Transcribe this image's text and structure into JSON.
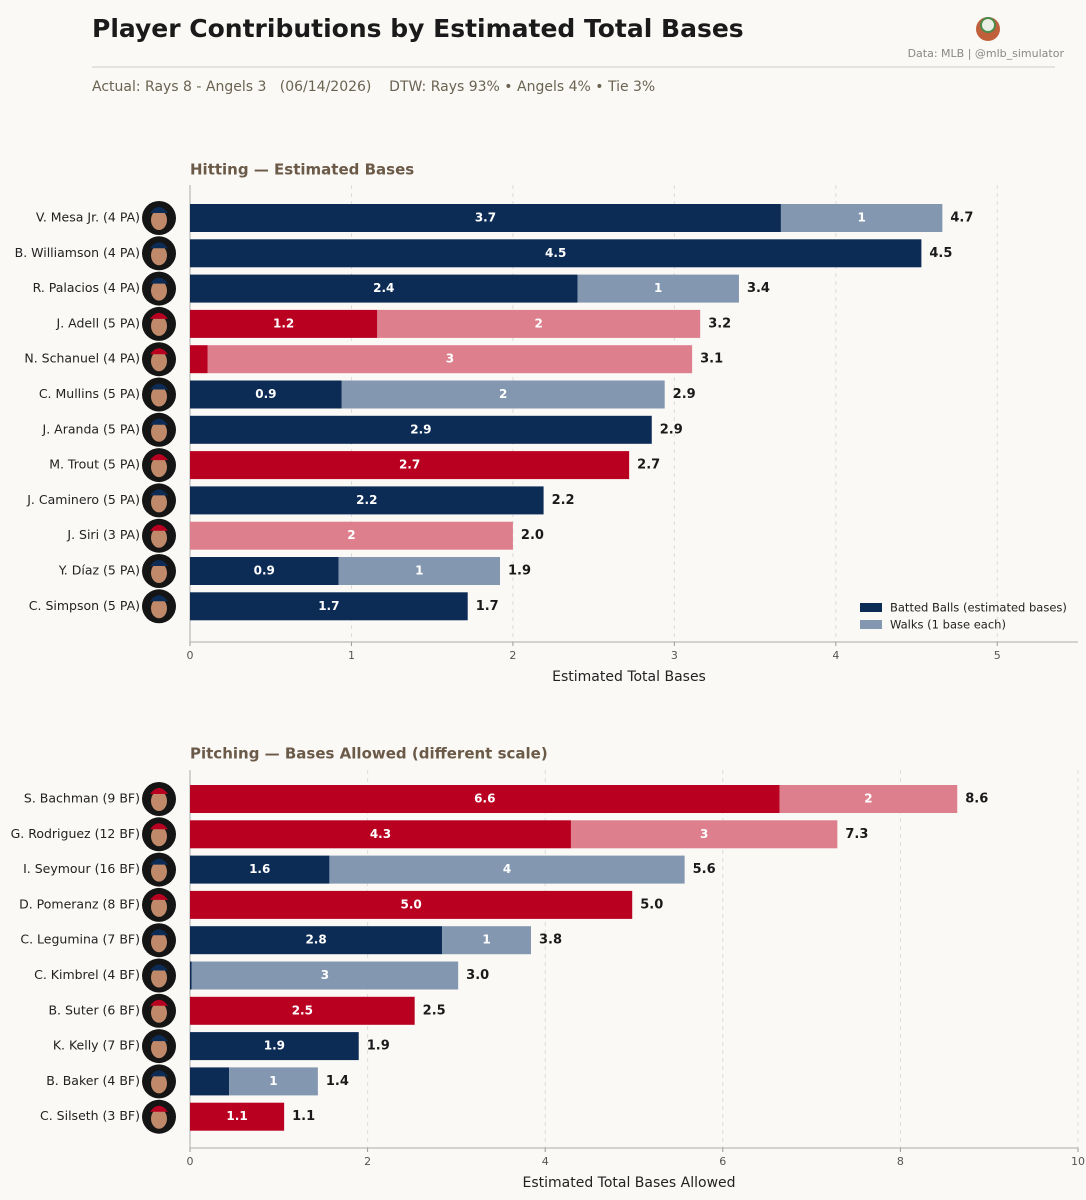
{
  "header": {
    "title": "Player Contributions by Estimated Total Bases",
    "source": "Data: MLB  |  @mlb_simulator",
    "subtitle": "Actual: Rays 8 - Angels 3   (06/14/2026)    DTW: Rays 93% • Angels 4% • Tie 3%"
  },
  "chart_data": [
    {
      "type": "stacked-barh",
      "title": "Hitting  —  Estimated Bases",
      "xlabel": "Estimated Total Bases",
      "categories": [
        "V. Mesa Jr.  (4 PA)",
        "B. Williamson  (4 PA)",
        "R. Palacios  (4 PA)",
        "J. Adell  (5 PA)",
        "N. Schanuel  (4 PA)",
        "C. Mullins  (5 PA)",
        "J. Aranda  (5 PA)",
        "M. Trout  (5 PA)",
        "J. Caminero  (5 PA)",
        "J. Siri  (3 PA)",
        "Y. Díaz  (5 PA)",
        "C. Simpson  (5 PA)"
      ],
      "series": [
        {
          "name": "Batted Balls (estimated bases)",
          "color": "#0c2c56",
          "colors": [
            "#0c2c56",
            "#0c2c56",
            "#0c2c56",
            "#ba0021",
            "#ba0021",
            "#0c2c56",
            "#0c2c56",
            "#ba0021",
            "#0c2c56",
            "#ba0021",
            "#0c2c56",
            "#0c2c56"
          ],
          "values": [
            3.66,
            4.53,
            2.4,
            1.16,
            0.11,
            0.94,
            2.86,
            2.72,
            2.19,
            0,
            0.92,
            1.72
          ],
          "value_labels": [
            "3.7",
            "4.5",
            "2.4",
            "1.2",
            null,
            "0.9",
            "2.9",
            "2.7",
            "2.2",
            null,
            "0.9",
            "1.7"
          ]
        },
        {
          "name": "Walks (1 base each)",
          "color": "#8497b0",
          "colors": [
            "#8497b0",
            "#8497b0",
            "#8497b0",
            "#dd7f8c",
            "#dd7f8c",
            "#8497b0",
            "#8497b0",
            "#dd7f8c",
            "#8497b0",
            "#dd7f8c",
            "#8497b0",
            "#8497b0"
          ],
          "values": [
            1,
            0,
            1,
            2,
            3,
            2,
            0,
            0,
            0,
            2,
            1,
            0
          ],
          "value_labels": [
            "1",
            null,
            "1",
            "2",
            "3",
            "2",
            null,
            null,
            null,
            "2",
            "1",
            null
          ]
        }
      ],
      "totals": [
        4.66,
        4.53,
        3.4,
        3.16,
        3.11,
        2.94,
        2.86,
        2.72,
        2.19,
        2.0,
        1.92,
        1.72
      ],
      "total_labels": [
        "4.7",
        "4.5",
        "3.4",
        "3.2",
        "3.1",
        "2.9",
        "2.9",
        "2.7",
        "2.2",
        "2.0",
        "1.9",
        "1.7"
      ],
      "xlim": [
        0,
        5.5
      ],
      "xticks": [
        0,
        1,
        2,
        3,
        4,
        5
      ],
      "grid": true,
      "legend": "lower right"
    },
    {
      "type": "stacked-barh",
      "title": "Pitching  —  Bases Allowed  (different scale)",
      "xlabel": "Estimated Total Bases Allowed",
      "categories": [
        "S. Bachman  (9 BF)",
        "G. Rodriguez  (12 BF)",
        "I. Seymour  (16 BF)",
        "D. Pomeranz  (8 BF)",
        "C. Legumina  (7 BF)",
        "C. Kimbrel  (4 BF)",
        "B. Suter  (6 BF)",
        "K. Kelly  (7 BF)",
        "B. Baker  (4 BF)",
        "C. Silseth  (3 BF)"
      ],
      "series": [
        {
          "name": "Batted Balls (estimated bases)",
          "color": "#0c2c56",
          "colors": [
            "#ba0021",
            "#ba0021",
            "#0c2c56",
            "#ba0021",
            "#0c2c56",
            "#0c2c56",
            "#ba0021",
            "#0c2c56",
            "#0c2c56",
            "#ba0021"
          ],
          "values": [
            6.64,
            4.29,
            1.57,
            4.98,
            2.84,
            0.02,
            2.53,
            1.9,
            0.44,
            1.06
          ],
          "value_labels": [
            "6.6",
            "4.3",
            "1.6",
            "5.0",
            "2.8",
            null,
            "2.5",
            "1.9",
            null,
            "1.1"
          ]
        },
        {
          "name": "Walks (1 base each)",
          "color": "#8497b0",
          "colors": [
            "#dd7f8c",
            "#dd7f8c",
            "#8497b0",
            "#dd7f8c",
            "#8497b0",
            "#8497b0",
            "#dd7f8c",
            "#8497b0",
            "#8497b0",
            "#dd7f8c"
          ],
          "values": [
            2,
            3,
            4,
            0,
            1,
            3,
            0,
            0,
            1,
            0
          ],
          "value_labels": [
            "2",
            "3",
            "4",
            null,
            "1",
            "3",
            null,
            null,
            "1",
            null
          ]
        }
      ],
      "totals": [
        8.64,
        7.29,
        5.57,
        4.98,
        3.84,
        3.02,
        2.53,
        1.9,
        1.44,
        1.06
      ],
      "total_labels": [
        "8.6",
        "7.3",
        "5.6",
        "5.0",
        "3.8",
        "3.0",
        "2.5",
        "1.9",
        "1.4",
        "1.1"
      ],
      "xlim": [
        0,
        10
      ],
      "xticks": [
        0,
        2,
        4,
        6,
        8,
        10
      ],
      "grid": true
    }
  ]
}
